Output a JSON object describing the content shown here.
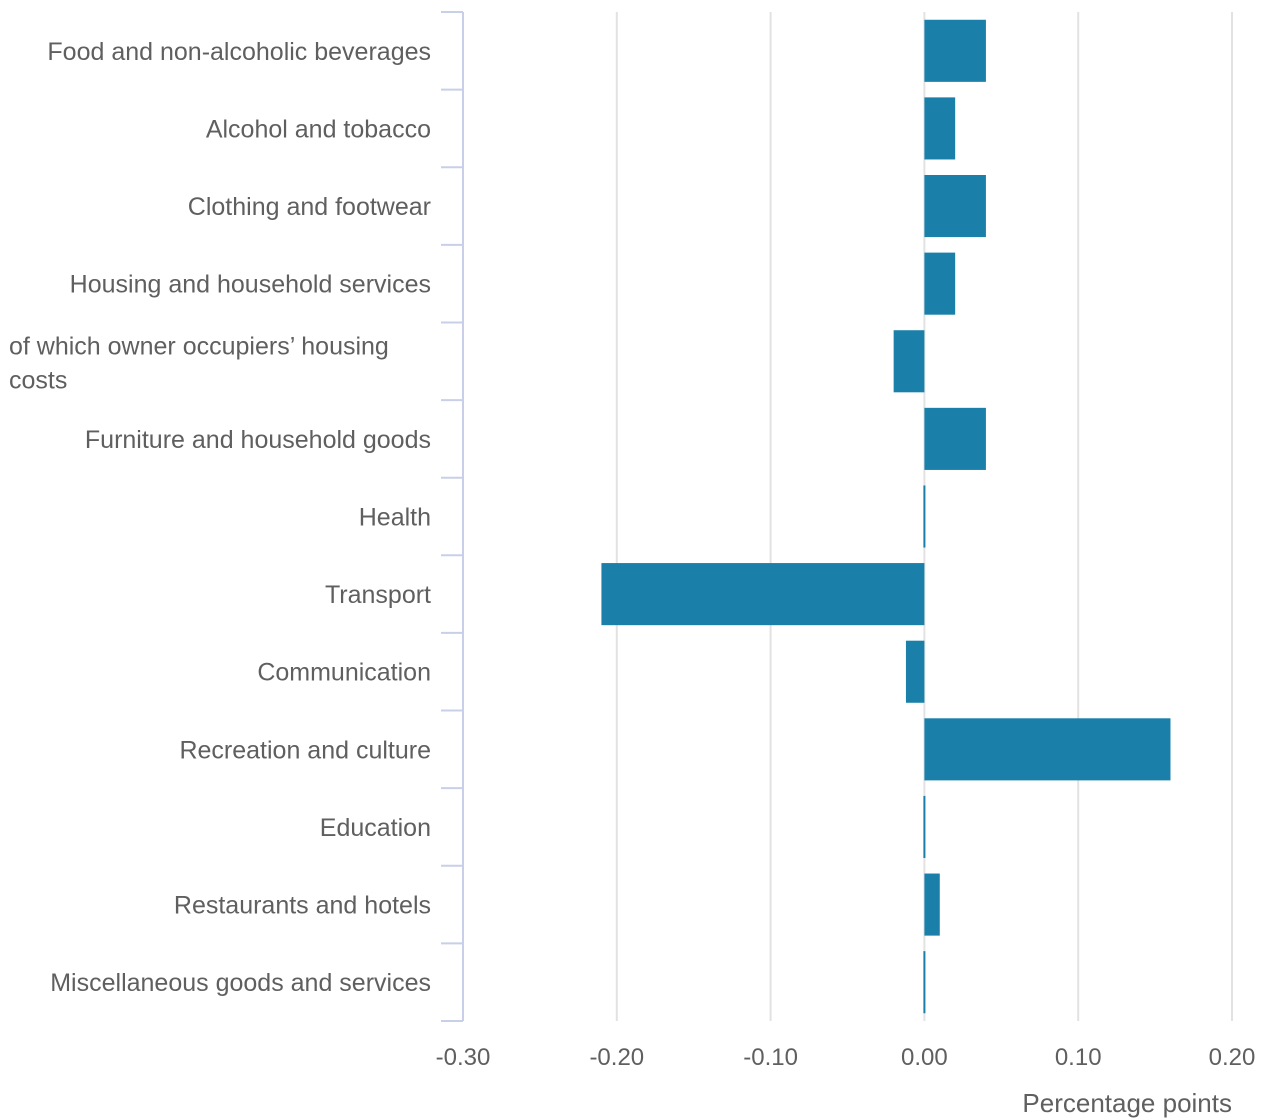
{
  "chart_data": {
    "type": "bar",
    "orientation": "horizontal",
    "categories": [
      [
        "Food and non-alcoholic beverages"
      ],
      [
        "Alcohol and tobacco"
      ],
      [
        "Clothing and footwear"
      ],
      [
        "Housing and household services"
      ],
      [
        "of which owner occupiers’ housing",
        "costs"
      ],
      [
        "Furniture and household goods"
      ],
      [
        "Health"
      ],
      [
        "Transport"
      ],
      [
        "Communication"
      ],
      [
        "Recreation and culture"
      ],
      [
        "Education"
      ],
      [
        "Restaurants and hotels"
      ],
      [
        "Miscellaneous goods and services"
      ]
    ],
    "values": [
      0.04,
      0.02,
      0.04,
      0.02,
      -0.02,
      0.04,
      0.0,
      -0.21,
      -0.012,
      0.16,
      0.0,
      0.01,
      0.0
    ],
    "xlim": [
      -0.3,
      0.2
    ],
    "xticks": [
      "-0.30",
      "-0.20",
      "-0.10",
      "0.00",
      "0.10",
      "0.20"
    ],
    "xlabel": "Percentage points",
    "grid": "vertical",
    "bar_color": "#1a80aa",
    "gridline_color": "#e2e2e2",
    "axis_color": "#c8cfe8",
    "text_color": "#5f5f5f"
  }
}
